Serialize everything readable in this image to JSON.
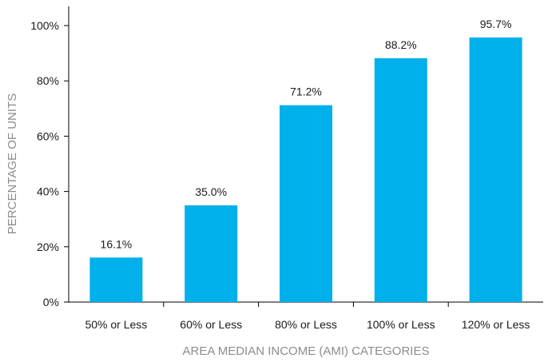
{
  "chart_data": {
    "type": "bar",
    "xlabel": "AREA MEDIAN INCOME (AMI) CATEGORIES",
    "ylabel": "PERCENTAGE OF UNITS",
    "categories": [
      "50% or Less",
      "60% or Less",
      "80% or Less",
      "100% or Less",
      "120% or Less"
    ],
    "values": [
      16.1,
      35.0,
      71.2,
      88.2,
      95.7
    ],
    "value_labels": [
      "16.1%",
      "35.0%",
      "71.2%",
      "88.2%",
      "95.7%"
    ],
    "y_ticks": [
      0,
      20,
      40,
      60,
      80,
      100
    ],
    "y_tick_labels": [
      "0%",
      "20%",
      "40%",
      "60%",
      "80%",
      "100%"
    ],
    "ylim": [
      0,
      100
    ],
    "grid": false,
    "bar_color": "#00b0eb",
    "text_color": "#1a1a1a",
    "axis_label_color": "#8c8c8c"
  }
}
